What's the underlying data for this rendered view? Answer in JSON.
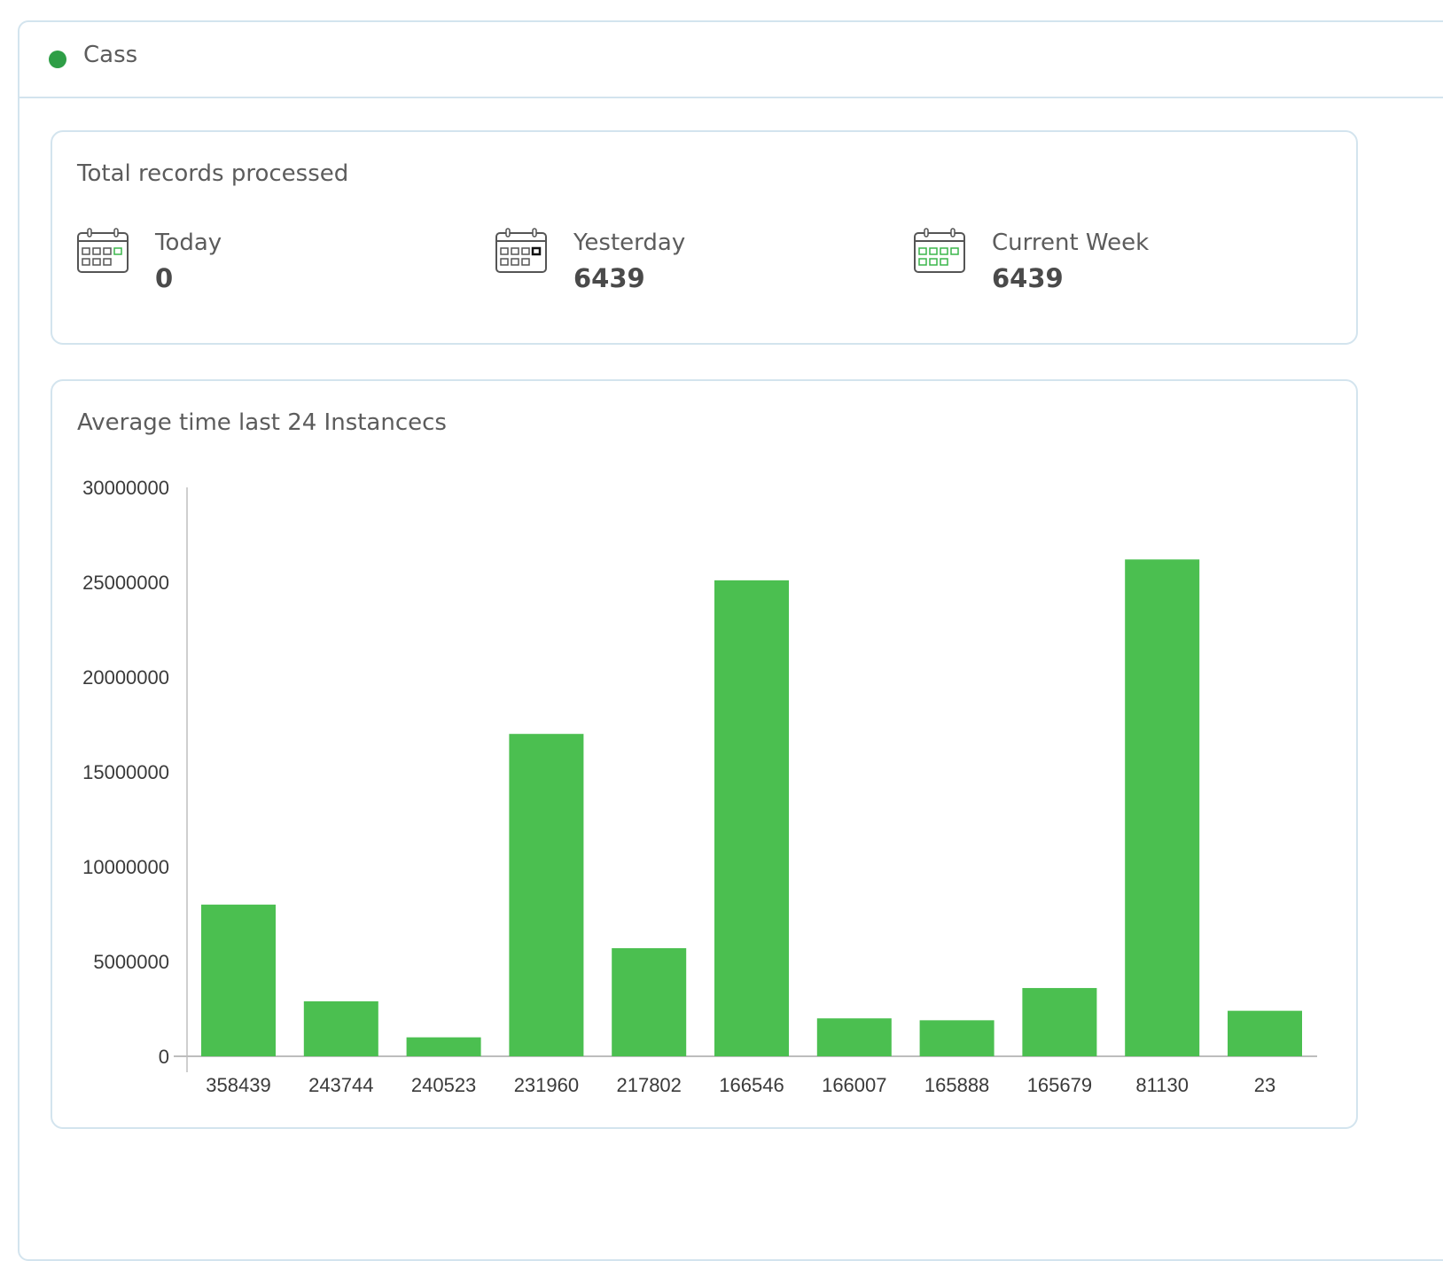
{
  "header": {
    "title": "Cass",
    "status_color": "#2e9e46"
  },
  "records": {
    "title": "Total records processed",
    "stats": [
      {
        "label": "Today",
        "value": "0",
        "icon": "calendar-icon"
      },
      {
        "label": "Yesterday",
        "value": "6439",
        "icon": "calendar-icon"
      },
      {
        "label": "Current Week",
        "value": "6439",
        "icon": "calendar-icon"
      }
    ]
  },
  "chart_data": {
    "type": "bar",
    "title": "Average time last 24 Instancecs",
    "categories": [
      "358439",
      "243744",
      "240523",
      "231960",
      "217802",
      "166546",
      "166007",
      "165888",
      "165679",
      "81130",
      "23"
    ],
    "values": [
      8000000,
      2900000,
      1000000,
      17000000,
      5700000,
      25100000,
      2000000,
      1900000,
      3600000,
      26200000,
      2400000
    ],
    "ylim": [
      0,
      30000000
    ],
    "yticks": [
      0,
      5000000,
      10000000,
      15000000,
      20000000,
      25000000,
      30000000
    ],
    "bar_color": "#4bbf50",
    "grid": false,
    "legend": "none"
  }
}
